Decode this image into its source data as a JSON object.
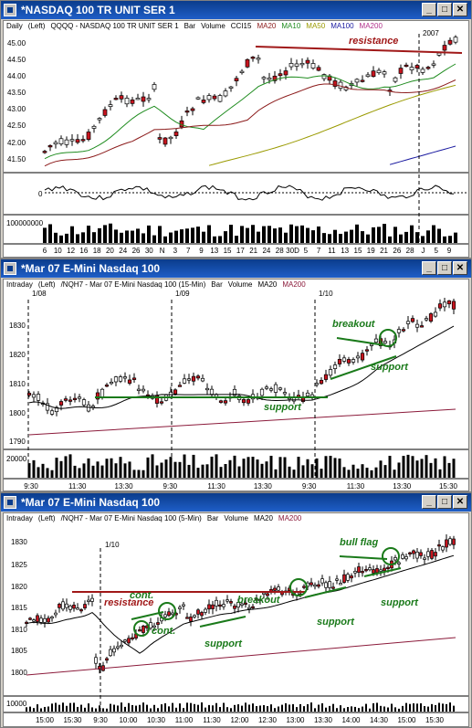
{
  "colors": {
    "titlebar": "#0a3c8c",
    "bull": "#ffffff",
    "bear": "#c8141e",
    "ma20": "#8b1a1a",
    "ma10": "#1f8c1f",
    "ma50": "#9a9a00",
    "ma100": "#1a1aa0",
    "ma200": "#8b1a3a",
    "annotation_red": "#a01818",
    "annotation_green": "#1a7a1a"
  },
  "icons": {
    "window": "chart-window-icon",
    "minimize": "minimize-icon",
    "maximize": "maximize-icon",
    "close": "close-icon"
  },
  "windows": [
    {
      "title": "*NASDAQ 100 TR UNIT SER 1",
      "legend": {
        "period": "Daily",
        "scale": "(Left)",
        "symbol": "QQQQ - NASDAQ 100 TR UNIT SER 1",
        "type": "Bar",
        "volume": "Volume",
        "cci": "CCI15",
        "ma20": "MA20",
        "ma10": "MA10",
        "ma50": "MA50",
        "ma100": "MA100",
        "ma200": "MA200"
      },
      "y_ticks": [
        "45.00",
        "44.50",
        "44.00",
        "43.50",
        "43.00",
        "42.50",
        "42.00",
        "41.50"
      ],
      "x_ticks": [
        "6",
        "10",
        "12",
        "16",
        "18",
        "20",
        "24",
        "26",
        "30",
        "N",
        "3",
        "7",
        "9",
        "13",
        "15",
        "17",
        "21",
        "24",
        "28",
        "30D",
        "5",
        "7",
        "11",
        "13",
        "15",
        "19",
        "21",
        "26",
        "28",
        "J",
        "5",
        "9"
      ],
      "year_label": "2007",
      "cci_zero": "0",
      "volume_label": "100000000",
      "annotations": {
        "resistance": "resistance"
      }
    },
    {
      "title": "*Mar 07  E-Mini Nasdaq 100",
      "legend": {
        "period": "Intraday",
        "scale": "(Left)",
        "symbol": "/NQH7 - Mar 07  E-Mini Nasdaq 100 (15-Min)",
        "type": "Bar",
        "volume": "Volume",
        "ma20": "MA20",
        "ma200": "MA200"
      },
      "y_ticks": [
        "1830",
        "1820",
        "1810",
        "1800",
        "1790"
      ],
      "x_ticks": [
        "9:30",
        "11:30",
        "13:30",
        "9:30",
        "11:30",
        "13:30",
        "9:30",
        "11:30",
        "13:30",
        "15:30"
      ],
      "date_labels": [
        "1/08",
        "1/09",
        "1/10"
      ],
      "volume_label": "20000",
      "annotations": {
        "breakout": "breakout",
        "support_top": "support",
        "support_bottom": "support"
      }
    },
    {
      "title": "*Mar 07  E-Mini Nasdaq 100",
      "legend": {
        "period": "Intraday",
        "scale": "(Left)",
        "symbol": "/NQH7 - Mar 07  E-Mini Nasdaq 100 (5-Min)",
        "type": "Bar",
        "volume": "Volume",
        "ma20": "MA20",
        "ma200": "MA200"
      },
      "y_ticks": [
        "1830",
        "1825",
        "1820",
        "1815",
        "1810",
        "1805",
        "1800"
      ],
      "x_ticks": [
        "15:00",
        "15:30",
        "9:30",
        "10:00",
        "10:30",
        "11:00",
        "11:30",
        "12:00",
        "12:30",
        "13:00",
        "13:30",
        "14:00",
        "14:30",
        "15:00",
        "15:30"
      ],
      "date_labels": [
        "1/10"
      ],
      "volume_label": "10000",
      "annotations": {
        "resistance": "resistance",
        "cont1": "cont.",
        "cont2": "cont.",
        "breakout": "breakout",
        "support1": "support",
        "support2": "support",
        "support3": "support",
        "bull_flag": "bull flag"
      }
    }
  ]
}
